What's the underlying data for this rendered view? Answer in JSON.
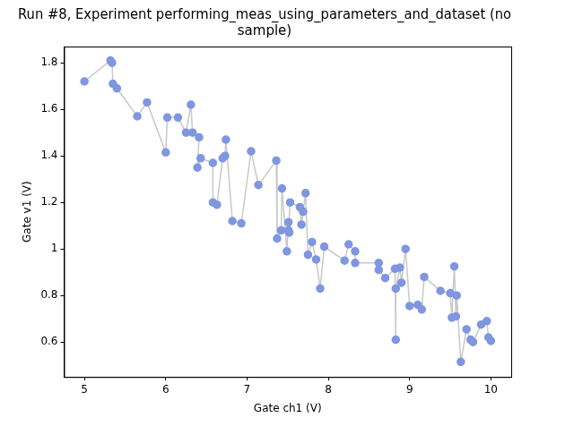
{
  "chart_data": {
    "type": "line",
    "title": [
      "Run #8, Experiment performing_meas_using_parameters_and_dataset (no",
      "sample)"
    ],
    "x_label": "Gate ch1 (V)",
    "y_label": "Gate v1 (V)",
    "xlim": [
      4.75,
      10.25
    ],
    "ylim": [
      0.45,
      1.87
    ],
    "xticks": [
      5,
      6,
      7,
      8,
      9,
      10
    ],
    "yticks": [
      0.6,
      0.8,
      1,
      1.2,
      1.4,
      1.6,
      1.8
    ],
    "grid": false,
    "series": [
      {
        "color": "#7f96e0",
        "marker": "circle",
        "line_style": "solid",
        "x": [
          5.0,
          5.32,
          5.34,
          5.35,
          5.4,
          5.65,
          5.77,
          6.0,
          6.02,
          6.15,
          6.25,
          6.31,
          6.33,
          6.41,
          6.39,
          6.43,
          6.58,
          6.58,
          6.63,
          6.7,
          6.73,
          6.74,
          6.82,
          6.93,
          7.05,
          7.14,
          7.36,
          7.37,
          7.42,
          7.43,
          7.49,
          7.51,
          7.52,
          7.51,
          7.53,
          7.65,
          7.67,
          7.69,
          7.72,
          7.75,
          7.8,
          7.85,
          7.9,
          7.95,
          8.2,
          8.25,
          8.33,
          8.33,
          8.62,
          8.62,
          8.7,
          8.82,
          8.83,
          8.83,
          8.88,
          8.9,
          8.95,
          9.0,
          9.1,
          9.15,
          9.18,
          9.38,
          9.5,
          9.52,
          9.55,
          9.57,
          9.58,
          9.63,
          9.7,
          9.75,
          9.78,
          9.88,
          9.95,
          9.97,
          10.0
        ],
        "values": [
          1.72,
          1.81,
          1.8,
          1.71,
          1.69,
          1.57,
          1.63,
          1.415,
          1.565,
          1.565,
          1.5,
          1.62,
          1.5,
          1.48,
          1.35,
          1.39,
          1.37,
          1.2,
          1.19,
          1.39,
          1.4,
          1.47,
          1.12,
          1.11,
          1.42,
          1.275,
          1.38,
          1.045,
          1.08,
          1.26,
          0.99,
          1.115,
          1.07,
          1.08,
          1.2,
          1.18,
          1.105,
          1.16,
          1.24,
          0.975,
          1.03,
          0.955,
          0.83,
          1.01,
          0.95,
          1.02,
          0.99,
          0.94,
          0.94,
          0.91,
          0.875,
          0.915,
          0.61,
          0.83,
          0.92,
          0.855,
          1.0,
          0.755,
          0.76,
          0.74,
          0.88,
          0.82,
          0.81,
          0.705,
          0.925,
          0.71,
          0.8,
          0.515,
          0.655,
          0.61,
          0.6,
          0.675,
          0.69,
          0.62,
          0.605
        ]
      }
    ]
  }
}
